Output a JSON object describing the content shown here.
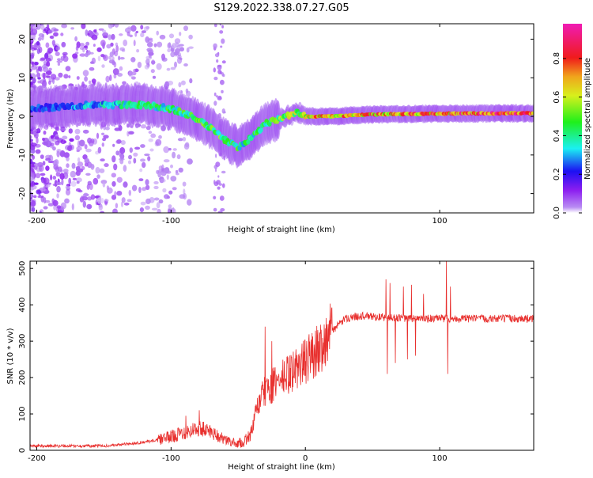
{
  "title": "S129.2022.338.07.27.G05",
  "colors": {
    "axis": "#000000",
    "snr_line": "#e8302e",
    "spectrogram_background": "#ffffff",
    "colormap": [
      "#ffffff",
      "#9f2bf0",
      "#1c10f2",
      "#1bf0f2",
      "#1ff01b",
      "#f0f01c",
      "#f01b1b",
      "#f01bb4"
    ]
  },
  "chart_data": [
    {
      "type": "heatmap",
      "name": "spectrogram",
      "xlabel": "Height of straight line (km)",
      "ylabel": "Frequency (Hz)",
      "xlim": [
        -205,
        170
      ],
      "ylim": [
        -25,
        24
      ],
      "xticks": [
        -200,
        -100,
        100
      ],
      "yticks": [
        20,
        10,
        0,
        -10,
        -20
      ],
      "colorbar": {
        "label": "Normalized spectral amplitude",
        "range": [
          0.0,
          0.98
        ],
        "ticks": [
          0.0,
          0.2,
          0.4,
          0.6,
          0.8
        ]
      },
      "ridge": {
        "x": [
          -205,
          -160,
          -140,
          -120,
          -100,
          -85,
          -70,
          -60,
          -50,
          -42,
          -30,
          -15,
          -5,
          0,
          20,
          50,
          100,
          150,
          170
        ],
        "freq": [
          2,
          3,
          3,
          3,
          2,
          0,
          -3,
          -6,
          -8,
          -6,
          -2,
          0,
          1,
          0,
          0,
          0.5,
          0.7,
          0.8,
          0.8
        ],
        "amplitude": [
          0.25,
          0.35,
          0.4,
          0.45,
          0.5,
          0.5,
          0.55,
          0.55,
          0.5,
          0.45,
          0.5,
          0.6,
          0.65,
          0.7,
          0.85,
          0.8,
          0.85,
          0.95,
          0.9
        ]
      }
    },
    {
      "type": "line",
      "name": "snr",
      "xlabel": "Height of straight line (km)",
      "ylabel": "SNR (10 * v/v)",
      "xlim": [
        -205,
        170
      ],
      "ylim": [
        0,
        520
      ],
      "xticks": [
        -200,
        -100,
        0,
        100
      ],
      "yticks": [
        0,
        100,
        200,
        300,
        400,
        500
      ],
      "envelope": {
        "x": [
          -205,
          -150,
          -130,
          -110,
          -100,
          -90,
          -80,
          -70,
          -60,
          -50,
          -45,
          -40,
          -35,
          -30,
          -25,
          -20,
          -10,
          0,
          10,
          20,
          30,
          40,
          60,
          80,
          100,
          120,
          140,
          170
        ],
        "snr": [
          12,
          12,
          18,
          28,
          38,
          50,
          60,
          52,
          28,
          18,
          25,
          50,
          130,
          160,
          175,
          190,
          215,
          245,
          280,
          330,
          362,
          370,
          365,
          362,
          362,
          362,
          362,
          362
        ]
      },
      "spikes": [
        {
          "x": -79,
          "snr": 110
        },
        {
          "x": -89,
          "snr": 95
        },
        {
          "x": -30,
          "snr": 340
        },
        {
          "x": -25,
          "snr": 300
        },
        {
          "x": 60,
          "snr": 470
        },
        {
          "x": 61,
          "snr": 210
        },
        {
          "x": 63,
          "snr": 460
        },
        {
          "x": 67,
          "snr": 240
        },
        {
          "x": 73,
          "snr": 450
        },
        {
          "x": 76,
          "snr": 250
        },
        {
          "x": 79,
          "snr": 455
        },
        {
          "x": 82,
          "snr": 260
        },
        {
          "x": 88,
          "snr": 430
        },
        {
          "x": 105,
          "snr": 520
        },
        {
          "x": 106,
          "snr": 210
        },
        {
          "x": 108,
          "snr": 450
        }
      ]
    }
  ]
}
